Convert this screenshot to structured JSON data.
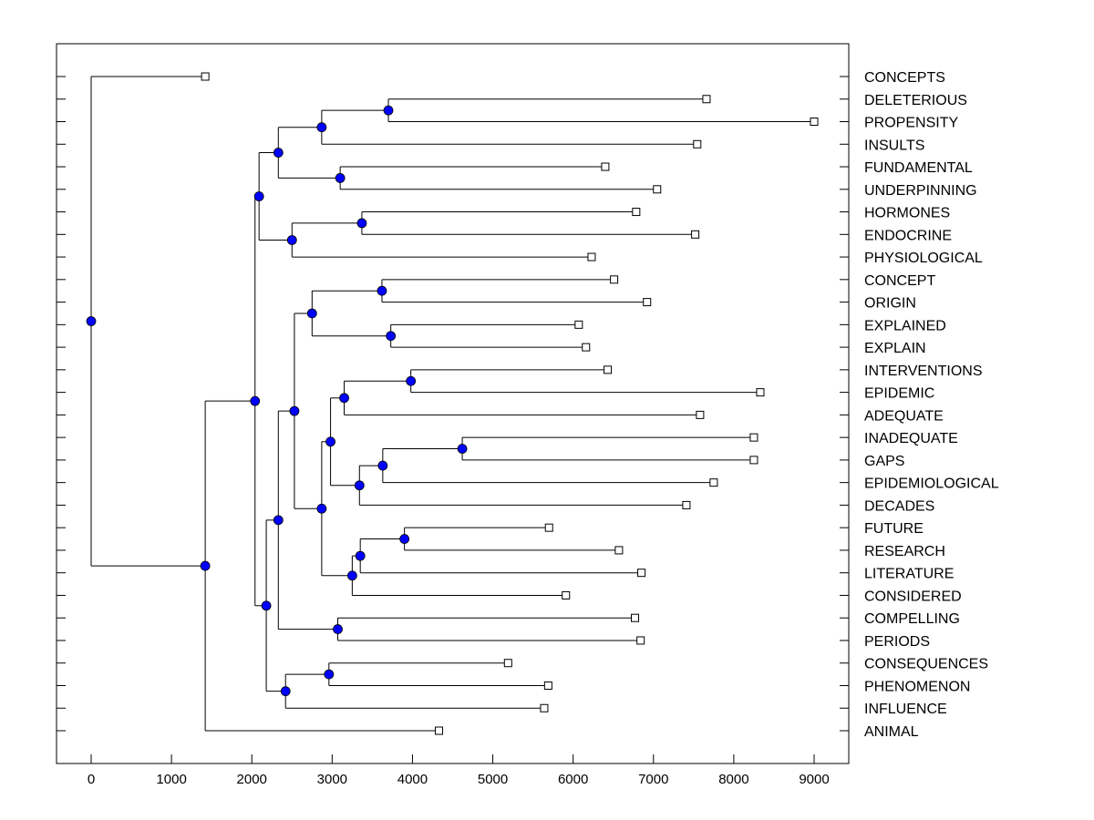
{
  "chart_data": {
    "type": "dendrogram",
    "orientation": "horizontal",
    "xlim": [
      -450,
      9400
    ],
    "xticks": [
      0,
      1000,
      2000,
      3000,
      4000,
      5000,
      6000,
      7000,
      8000,
      9000
    ],
    "grid": false,
    "node_color": "#0000ff",
    "leaves": [
      {
        "label": "CONCEPTS",
        "value": 1420
      },
      {
        "label": "DELETERIOUS",
        "value": 7660
      },
      {
        "label": "PROPENSITY",
        "value": 9000
      },
      {
        "label": "INSULTS",
        "value": 7545
      },
      {
        "label": "FUNDAMENTAL",
        "value": 6400
      },
      {
        "label": "UNDERPINNING",
        "value": 7045
      },
      {
        "label": "HORMONES",
        "value": 6785
      },
      {
        "label": "ENDOCRINE",
        "value": 7520
      },
      {
        "label": "PHYSIOLOGICAL",
        "value": 6230
      },
      {
        "label": "CONCEPT",
        "value": 6510
      },
      {
        "label": "ORIGIN",
        "value": 6920
      },
      {
        "label": "EXPLAINED",
        "value": 6070
      },
      {
        "label": "EXPLAIN",
        "value": 6160
      },
      {
        "label": "INTERVENTIONS",
        "value": 6430
      },
      {
        "label": "EPIDEMIC",
        "value": 8330
      },
      {
        "label": "ADEQUATE",
        "value": 7580
      },
      {
        "label": "INADEQUATE",
        "value": 8250
      },
      {
        "label": "GAPS",
        "value": 8250
      },
      {
        "label": "EPIDEMIOLOGICAL",
        "value": 7750
      },
      {
        "label": "DECADES",
        "value": 7410
      },
      {
        "label": "FUTURE",
        "value": 5700
      },
      {
        "label": "RESEARCH",
        "value": 6570
      },
      {
        "label": "LITERATURE",
        "value": 6850
      },
      {
        "label": "CONSIDERED",
        "value": 5910
      },
      {
        "label": "COMPELLING",
        "value": 6770
      },
      {
        "label": "PERIODS",
        "value": 6840
      },
      {
        "label": "CONSEQUENCES",
        "value": 5190
      },
      {
        "label": "PHENOMENON",
        "value": 5690
      },
      {
        "label": "INFLUENCE",
        "value": 5640
      },
      {
        "label": "ANIMAL",
        "value": 4330
      }
    ],
    "tree": {
      "h": 0,
      "c": [
        0,
        {
          "h": 1420,
          "c": [
            {
              "h": 2040,
              "c": [
                {
                  "h": 2090,
                  "c": [
                    {
                      "h": 2330,
                      "c": [
                        {
                          "h": 2870,
                          "c": [
                            {
                              "h": 3700,
                              "c": [
                                1,
                                2
                              ]
                            },
                            3
                          ]
                        },
                        {
                          "h": 3100,
                          "c": [
                            4,
                            5
                          ]
                        }
                      ]
                    },
                    {
                      "h": 2500,
                      "c": [
                        {
                          "h": 3370,
                          "c": [
                            6,
                            7
                          ]
                        },
                        8
                      ]
                    }
                  ]
                },
                {
                  "h": 2180,
                  "c": [
                    {
                      "h": 2330,
                      "c": [
                        {
                          "h": 2530,
                          "c": [
                            {
                              "h": 2750,
                              "c": [
                                {
                                  "h": 3620,
                                  "c": [
                                    9,
                                    10
                                  ]
                                },
                                {
                                  "h": 3730,
                                  "c": [
                                    11,
                                    12
                                  ]
                                }
                              ]
                            },
                            {
                              "h": 2870,
                              "c": [
                                {
                                  "h": 2980,
                                  "c": [
                                    {
                                      "h": 3150,
                                      "c": [
                                        {
                                          "h": 3980,
                                          "c": [
                                            13,
                                            14
                                          ]
                                        },
                                        15
                                      ]
                                    },
                                    {
                                      "h": 3340,
                                      "c": [
                                        {
                                          "h": 3630,
                                          "c": [
                                            {
                                              "h": 4620,
                                              "c": [
                                                16,
                                                17
                                              ]
                                            },
                                            18
                                          ]
                                        },
                                        19
                                      ]
                                    }
                                  ]
                                },
                                {
                                  "h": 3250,
                                  "c": [
                                    {
                                      "h": 3350,
                                      "c": [
                                        {
                                          "h": 3900,
                                          "c": [
                                            20,
                                            21
                                          ]
                                        },
                                        22
                                      ]
                                    },
                                    23
                                  ]
                                }
                              ]
                            }
                          ]
                        },
                        {
                          "h": 3070,
                          "c": [
                            24,
                            25
                          ]
                        }
                      ]
                    },
                    {
                      "h": 2420,
                      "c": [
                        {
                          "h": 2960,
                          "c": [
                            26,
                            27
                          ]
                        },
                        28
                      ]
                    }
                  ]
                }
              ]
            },
            29
          ]
        }
      ]
    }
  }
}
